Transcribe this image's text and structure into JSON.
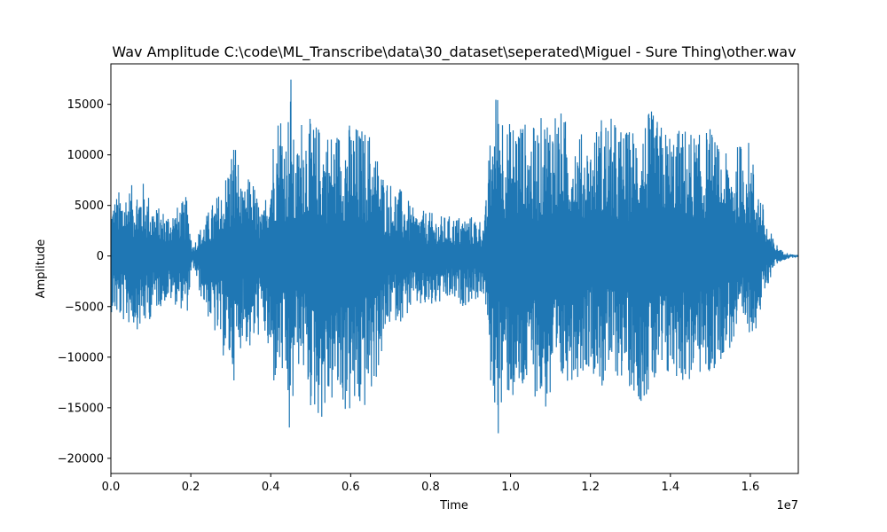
{
  "chart_data": {
    "type": "line",
    "title": "Wav Amplitude C:\\code\\ML_Transcribe\\data\\30_dataset\\seperated\\Miguel - Sure Thing\\other.wav",
    "xlabel": "Time",
    "ylabel": "Amplitude",
    "x_offset_label": "1e7",
    "xlim": [
      0,
      17200000
    ],
    "ylim": [
      -21500,
      19000
    ],
    "x_ticks": [
      0,
      2000000,
      4000000,
      6000000,
      8000000,
      10000000,
      12000000,
      14000000,
      16000000
    ],
    "x_tick_labels": [
      "0.0",
      "0.2",
      "0.4",
      "0.6",
      "0.8",
      "1.0",
      "1.2",
      "1.4",
      "1.6"
    ],
    "y_ticks": [
      -20000,
      -15000,
      -10000,
      -5000,
      0,
      5000,
      10000,
      15000
    ],
    "y_tick_labels": [
      "−20000",
      "−15000",
      "−10000",
      "−5000",
      "0",
      "5000",
      "10000",
      "15000"
    ],
    "grid": false,
    "line_color": "#1f77b4",
    "series": [
      {
        "envelope_x": [
          0,
          200000,
          500000,
          800000,
          1100000,
          1400000,
          1700000,
          1900000,
          2050000,
          2200000,
          2500000,
          2800000,
          3100000,
          3300000,
          3500000,
          3800000,
          4050000,
          4250000,
          4400000,
          4500000,
          4600000,
          4800000,
          5000000,
          5300000,
          5600000,
          5900000,
          6200000,
          6500000,
          6800000,
          7000000,
          7300000,
          7600000,
          7900000,
          8200000,
          8500000,
          8800000,
          9100000,
          9350000,
          9500000,
          9700000,
          9900000,
          10200000,
          10500000,
          10800000,
          11100000,
          11400000,
          11700000,
          12000000,
          12300000,
          12600000,
          12900000,
          13200000,
          13500000,
          13800000,
          14100000,
          14400000,
          14700000,
          15000000,
          15300000,
          15600000,
          15900000,
          16200000,
          16400000,
          16600000,
          16800000,
          17000000,
          17200000
        ],
        "envelope_upper": [
          5500,
          6500,
          7000,
          7500,
          5000,
          4500,
          5000,
          6000,
          1000,
          2500,
          5000,
          7000,
          12500,
          6000,
          8500,
          4000,
          12000,
          16000,
          12000,
          19000,
          9000,
          15000,
          13500,
          13000,
          12500,
          13500,
          13000,
          12500,
          8500,
          7500,
          6500,
          4500,
          4500,
          4000,
          4000,
          4000,
          4000,
          3500,
          12500,
          18500,
          13000,
          14500,
          12500,
          14000,
          15500,
          13500,
          12500,
          11500,
          14500,
          13500,
          12500,
          13500,
          14500,
          13000,
          12500,
          13000,
          12000,
          13000,
          10000,
          10500,
          12500,
          7500,
          3500,
          1500,
          500,
          200,
          100
        ],
        "envelope_lower": [
          -5500,
          -6500,
          -7000,
          -7500,
          -5500,
          -4500,
          -5000,
          -6000,
          -1000,
          -3500,
          -7000,
          -10000,
          -12500,
          -8000,
          -10000,
          -7000,
          -13500,
          -12000,
          -15000,
          -21500,
          -11000,
          -11500,
          -15500,
          -16500,
          -14500,
          -16000,
          -16500,
          -14500,
          -10000,
          -6500,
          -6500,
          -5000,
          -5500,
          -5000,
          -4500,
          -5000,
          -4500,
          -4000,
          -13000,
          -18000,
          -14000,
          -15500,
          -13000,
          -15500,
          -16000,
          -12500,
          -12000,
          -11000,
          -13500,
          -12000,
          -12500,
          -14500,
          -14000,
          -13500,
          -12000,
          -13000,
          -12000,
          -12500,
          -10000,
          -9000,
          -8000,
          -7000,
          -3500,
          -1000,
          -500,
          -200,
          -100
        ]
      }
    ]
  }
}
